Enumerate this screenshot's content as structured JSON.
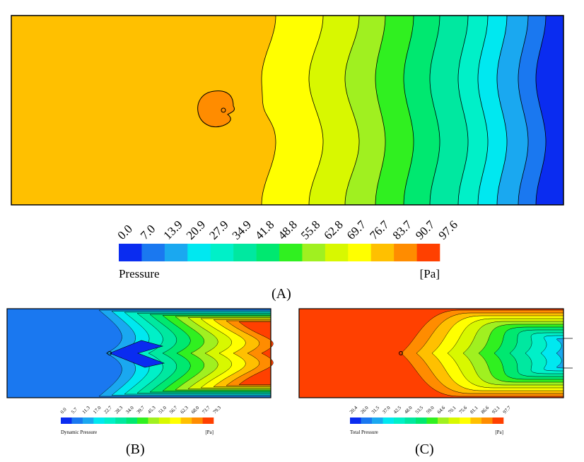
{
  "chart_data": [
    {
      "type": "heatmap",
      "subtype": "contour",
      "panel": "(A)",
      "colorbar_title": "Pressure",
      "unit": "[Pa]",
      "levels": [
        "0.0",
        "7.0",
        "13.9",
        "20.9",
        "27.9",
        "34.9",
        "41.8",
        "48.8",
        "55.8",
        "62.8",
        "69.7",
        "76.7",
        "83.7",
        "90.7",
        "97.6"
      ],
      "colors": [
        "#0a2cf0",
        "#1a78f0",
        "#1aa8f0",
        "#00e8f0",
        "#00f0c8",
        "#00e8a0",
        "#00e870",
        "#30f020",
        "#a0f020",
        "#d8f800",
        "#ffff00",
        "#ffc000",
        "#ff8c00",
        "#ff4000"
      ]
    },
    {
      "type": "heatmap",
      "subtype": "contour",
      "panel": "(B)",
      "colorbar_title": "Dynamic Pressure",
      "unit": "[Pa]",
      "levels": [
        "0.0",
        "5.7",
        "11.3",
        "17.0",
        "22.7",
        "28.3",
        "34.0",
        "39.7",
        "45.3",
        "51.0",
        "56.7",
        "62.3",
        "68.0",
        "73.7",
        "79.3"
      ],
      "colors": [
        "#0a2cf0",
        "#1a78f0",
        "#1aa8f0",
        "#00e8f0",
        "#00f0c8",
        "#00e8a0",
        "#00e870",
        "#30f020",
        "#a0f020",
        "#d8f800",
        "#ffff00",
        "#ffc000",
        "#ff8c00",
        "#ff4000"
      ]
    },
    {
      "type": "heatmap",
      "subtype": "contour",
      "panel": "(C)",
      "colorbar_title": "Total Pressure",
      "unit": "[Pa]",
      "levels": [
        "20.4",
        "26.0",
        "31.5",
        "37.0",
        "42.5",
        "48.0",
        "53.5",
        "59.0",
        "64.6",
        "70.1",
        "75.6",
        "81.1",
        "86.6",
        "92.1",
        "97.7"
      ],
      "colors": [
        "#0a2cf0",
        "#1a78f0",
        "#1aa8f0",
        "#00e8f0",
        "#00f0c8",
        "#00e8a0",
        "#00e870",
        "#30f020",
        "#a0f020",
        "#d8f800",
        "#ffff00",
        "#ffc000",
        "#ff8c00",
        "#ff4000"
      ]
    }
  ]
}
